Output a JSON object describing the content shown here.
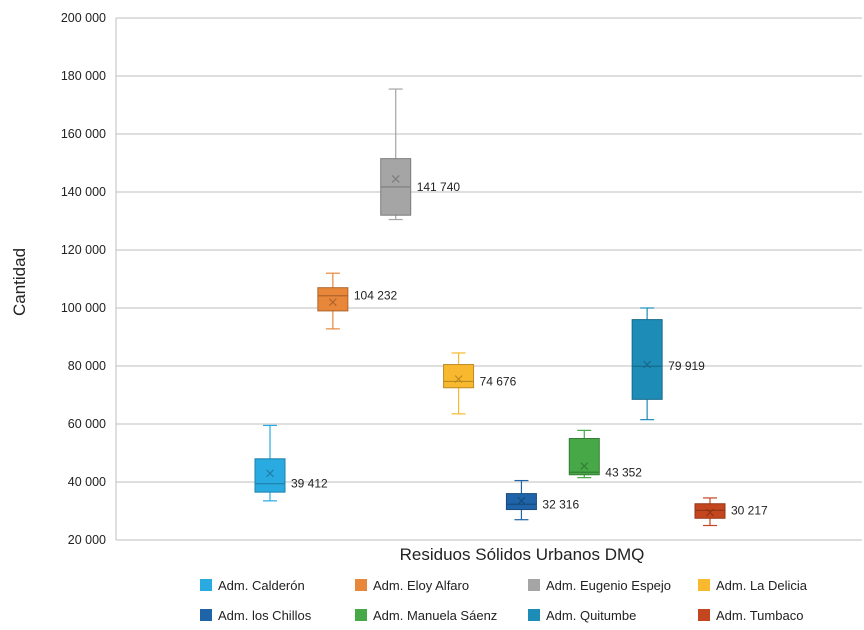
{
  "chart_data": {
    "type": "box",
    "title": "",
    "xlabel": "Residuos Sólidos Urbanos DMQ",
    "ylabel": "Cantidad",
    "ylim": [
      20000,
      200000
    ],
    "yticks": [
      20000,
      40000,
      60000,
      80000,
      100000,
      120000,
      140000,
      160000,
      180000,
      200000
    ],
    "ytick_labels": [
      "20 000",
      "40 000",
      "60 000",
      "80 000",
      "100 000",
      "120 000",
      "140 000",
      "160 000",
      "180 000",
      "200 000"
    ],
    "grid": true,
    "legend_position": "bottom",
    "series": [
      {
        "name": "Adm. Calderón",
        "color": "#29ABE2",
        "min": 33500,
        "q1": 36500,
        "median": 39412,
        "q3": 48000,
        "max": 59500,
        "mean": 43000,
        "label": "39 412"
      },
      {
        "name": "Adm. Eloy Alfaro",
        "color": "#E8873A",
        "min": 92800,
        "q1": 99000,
        "median": 104232,
        "q3": 107000,
        "max": 112000,
        "mean": 102000,
        "label": "104 232"
      },
      {
        "name": "Adm. Eugenio Espejo",
        "color": "#A5A5A5",
        "min": 130500,
        "q1": 132000,
        "median": 141740,
        "q3": 151500,
        "max": 175500,
        "mean": 144500,
        "label": "141 740"
      },
      {
        "name": "Adm. La Delicia",
        "color": "#F9B92E",
        "min": 63500,
        "q1": 72500,
        "median": 74676,
        "q3": 80500,
        "max": 84500,
        "mean": 75500,
        "label": "74 676"
      },
      {
        "name": "Adm. los Chillos",
        "color": "#1F64A8",
        "min": 27000,
        "q1": 30500,
        "median": 32316,
        "q3": 36000,
        "max": 40500,
        "mean": 33500,
        "label": "32 316"
      },
      {
        "name": "Adm. Manuela Sáenz",
        "color": "#46A846",
        "min": 41500,
        "q1": 42500,
        "median": 43352,
        "q3": 55000,
        "max": 57800,
        "mean": 45500,
        "label": "43 352"
      },
      {
        "name": "Adm. Quitumbe",
        "color": "#1D8DB8",
        "min": 61500,
        "q1": 68500,
        "median": 79919,
        "q3": 96000,
        "max": 100000,
        "mean": 80500,
        "label": "79 919"
      },
      {
        "name": "Adm. Tumbaco",
        "color": "#C4461F",
        "min": 25000,
        "q1": 27500,
        "median": 30217,
        "q3": 32500,
        "max": 34500,
        "mean": 29500,
        "label": "30 217"
      }
    ]
  }
}
